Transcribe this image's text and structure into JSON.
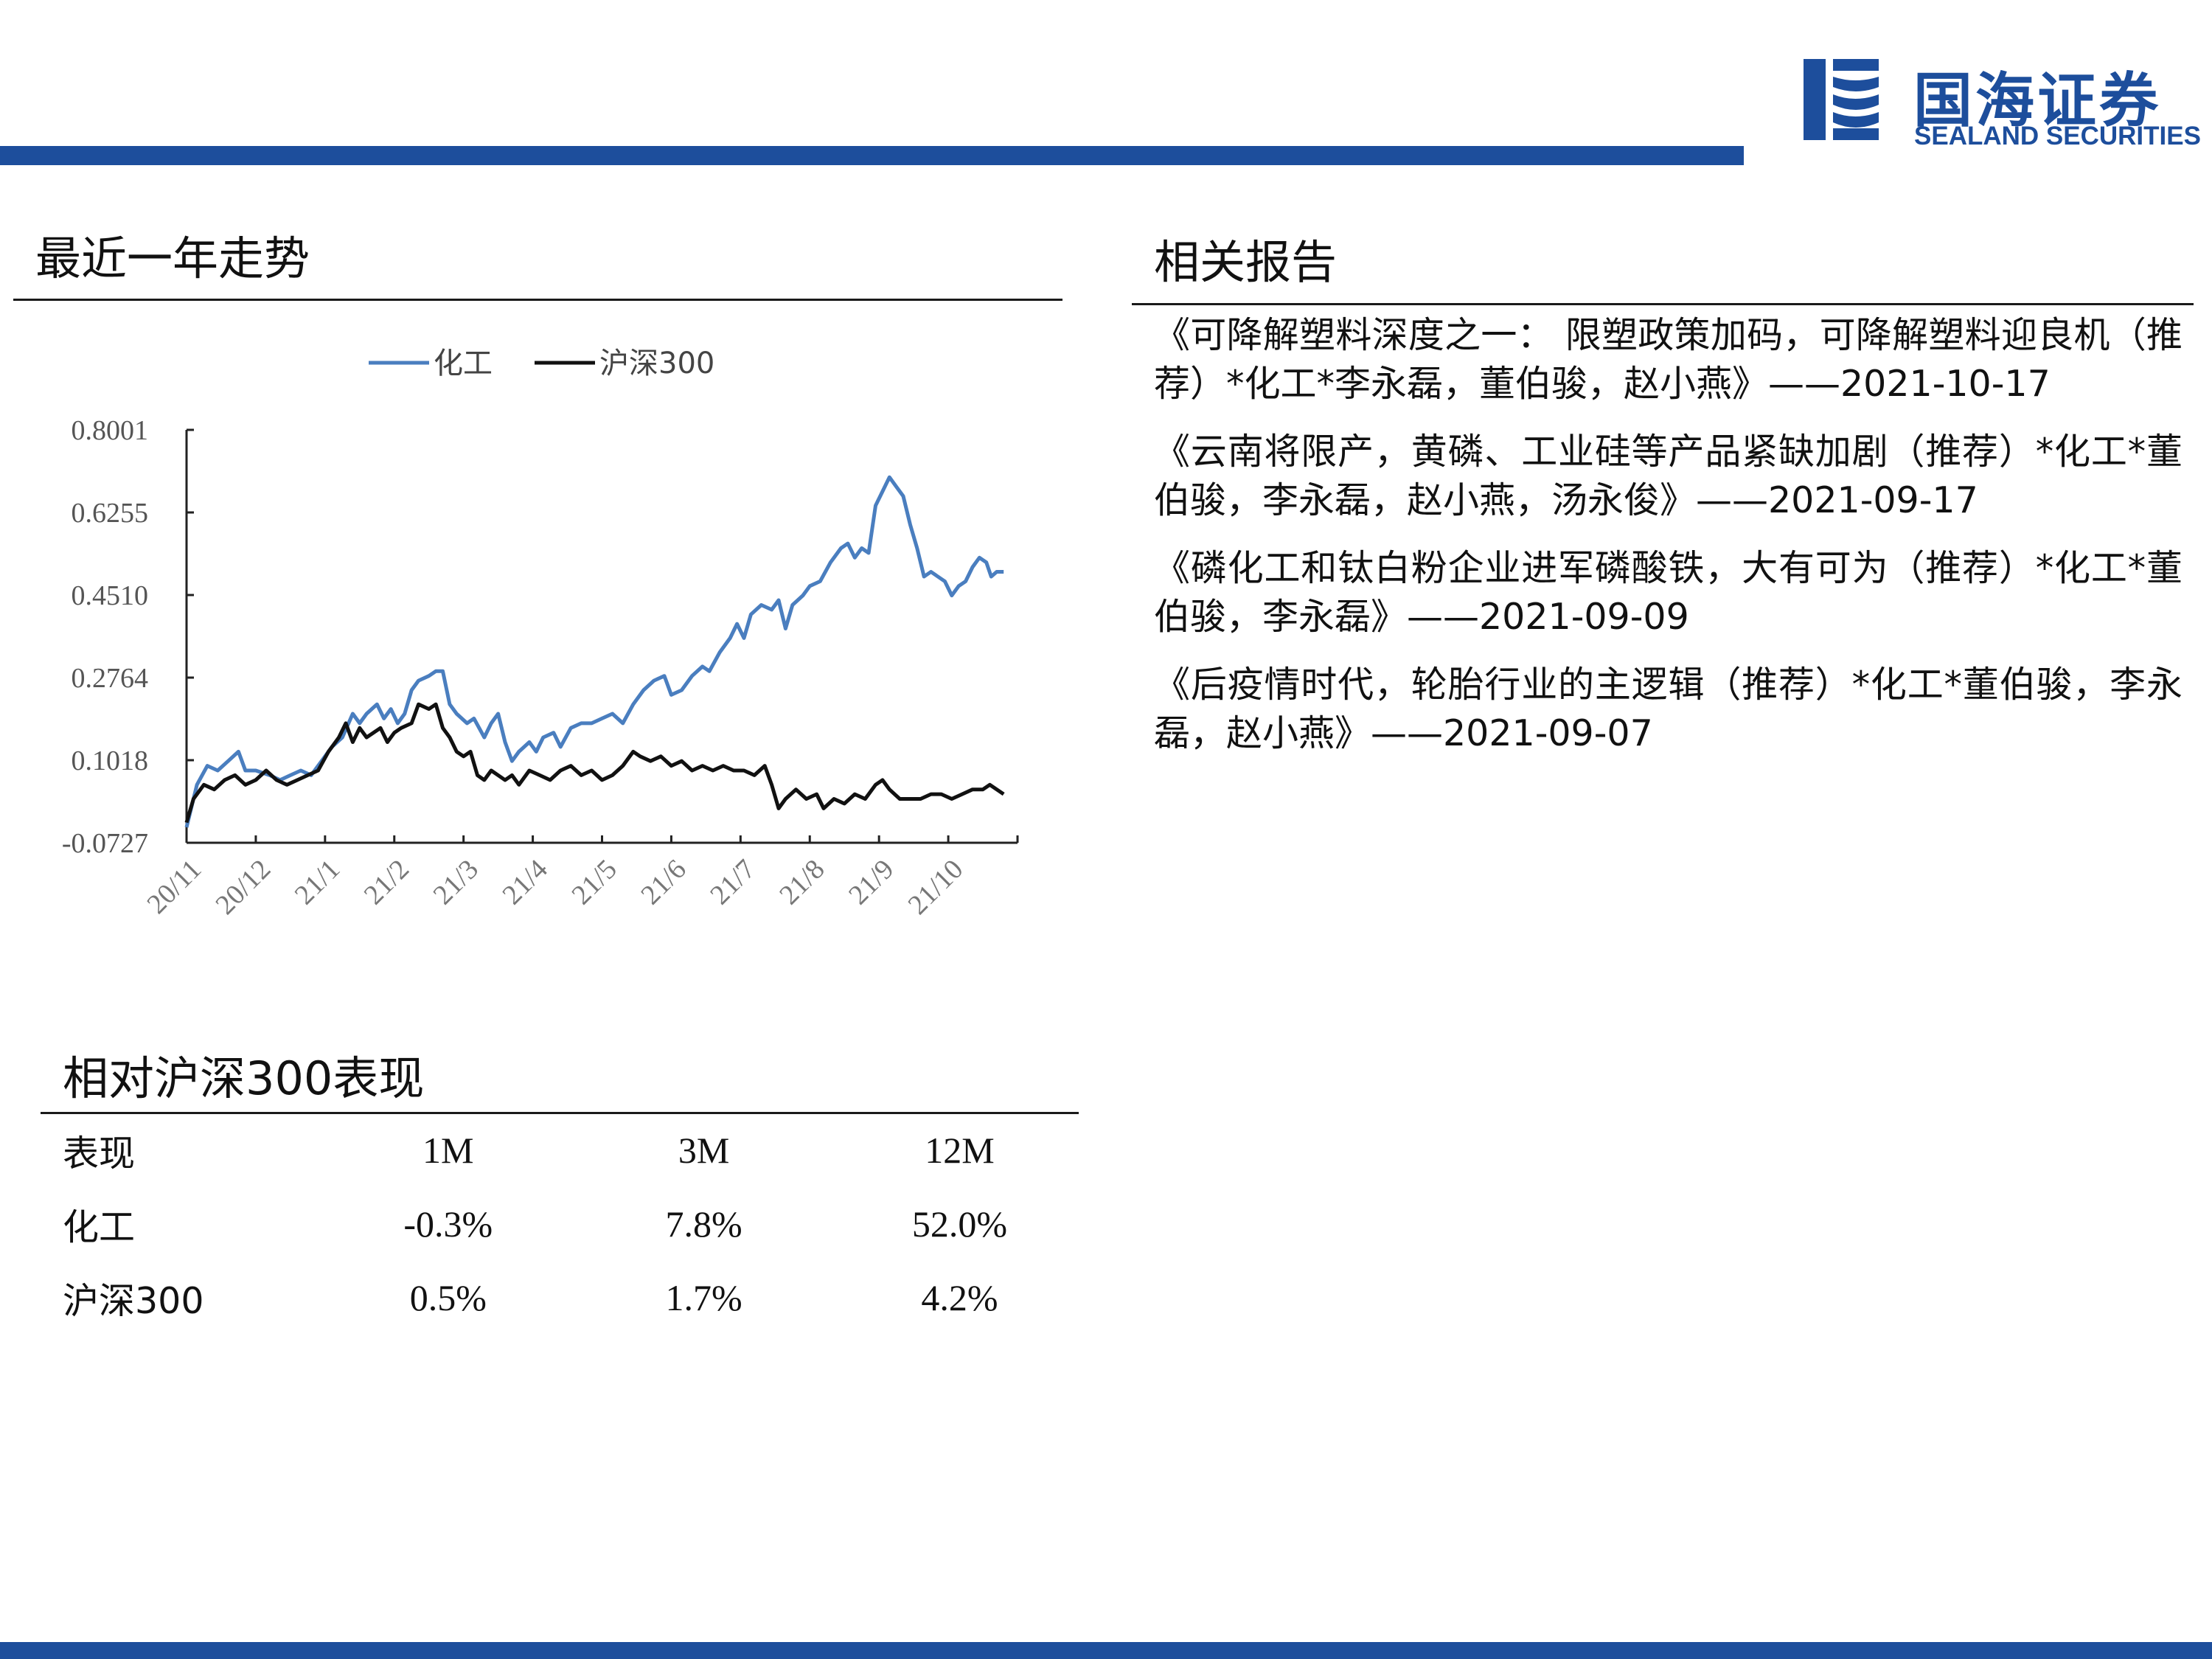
{
  "header": {
    "logo_cn": "国海证券",
    "logo_en": "SEALAND SECURITIES",
    "brand_color": "#1d4e9c"
  },
  "trend_section": {
    "title": "最近一年走势"
  },
  "reports_section": {
    "title": "相关报告",
    "items": [
      "《可降解塑料深度之一：  限塑政策加码，可降解塑料迎良机（推荐）*化工*李永磊，董伯骏，赵小燕》——2021-10-17",
      "《云南将限产，黄磷、工业硅等产品紧缺加剧（推荐）*化工*董伯骏，李永磊，赵小燕，汤永俊》——2021-09-17",
      "《磷化工和钛白粉企业进军磷酸铁，大有可为（推荐）*化工*董伯骏，李永磊》——2021-09-09",
      "《后疫情时代，轮胎行业的主逻辑（推荐）*化工*董伯骏，李永磊，赵小燕》——2021-09-07"
    ]
  },
  "performance_section": {
    "title": "相对沪深300表现",
    "headers": [
      "表现",
      "1M",
      "3M",
      "12M"
    ],
    "rows": [
      [
        "化工",
        "-0.3%",
        "7.8%",
        "52.0%"
      ],
      [
        "沪深300",
        "0.5%",
        "1.7%",
        "4.2%"
      ]
    ]
  },
  "chart_data": {
    "type": "line",
    "legend": [
      "化工",
      "沪深300"
    ],
    "legend_position": "top-center",
    "yticks": [
      "0.8001",
      "0.6255",
      "0.4510",
      "0.2764",
      "0.1018",
      "-0.0727"
    ],
    "ylim": [
      -0.0727,
      0.8001
    ],
    "xticks": [
      "20/11",
      "20/12",
      "21/1",
      "21/2",
      "21/3",
      "21/4",
      "21/5",
      "21/6",
      "21/7",
      "21/8",
      "21/9",
      "21/10"
    ],
    "xlim": [
      0,
      12
    ],
    "grid": false,
    "series": [
      {
        "name": "化工",
        "color": "#4a7ebf",
        "points": [
          [
            0,
            -0.04
          ],
          [
            0.15,
            0.05
          ],
          [
            0.3,
            0.09
          ],
          [
            0.45,
            0.08
          ],
          [
            0.6,
            0.1
          ],
          [
            0.75,
            0.12
          ],
          [
            0.85,
            0.08
          ],
          [
            1,
            0.08
          ],
          [
            1.2,
            0.07
          ],
          [
            1.35,
            0.06
          ],
          [
            1.5,
            0.07
          ],
          [
            1.65,
            0.08
          ],
          [
            1.8,
            0.07
          ],
          [
            1.95,
            0.1
          ],
          [
            2.1,
            0.13
          ],
          [
            2.25,
            0.15
          ],
          [
            2.4,
            0.2
          ],
          [
            2.5,
            0.18
          ],
          [
            2.6,
            0.2
          ],
          [
            2.75,
            0.22
          ],
          [
            2.85,
            0.19
          ],
          [
            2.95,
            0.21
          ],
          [
            3.05,
            0.18
          ],
          [
            3.15,
            0.2
          ],
          [
            3.25,
            0.25
          ],
          [
            3.35,
            0.27
          ],
          [
            3.5,
            0.28
          ],
          [
            3.6,
            0.29
          ],
          [
            3.7,
            0.29
          ],
          [
            3.8,
            0.22
          ],
          [
            3.9,
            0.2
          ],
          [
            4.05,
            0.18
          ],
          [
            4.15,
            0.19
          ],
          [
            4.3,
            0.15
          ],
          [
            4.4,
            0.18
          ],
          [
            4.5,
            0.2
          ],
          [
            4.6,
            0.14
          ],
          [
            4.7,
            0.1
          ],
          [
            4.8,
            0.12
          ],
          [
            4.95,
            0.14
          ],
          [
            5.05,
            0.12
          ],
          [
            5.15,
            0.15
          ],
          [
            5.3,
            0.16
          ],
          [
            5.4,
            0.13
          ],
          [
            5.55,
            0.17
          ],
          [
            5.7,
            0.18
          ],
          [
            5.85,
            0.18
          ],
          [
            6,
            0.19
          ],
          [
            6.15,
            0.2
          ],
          [
            6.3,
            0.18
          ],
          [
            6.45,
            0.22
          ],
          [
            6.6,
            0.25
          ],
          [
            6.75,
            0.27
          ],
          [
            6.9,
            0.28
          ],
          [
            7,
            0.24
          ],
          [
            7.15,
            0.25
          ],
          [
            7.3,
            0.28
          ],
          [
            7.45,
            0.3
          ],
          [
            7.55,
            0.29
          ],
          [
            7.7,
            0.33
          ],
          [
            7.85,
            0.36
          ],
          [
            7.95,
            0.39
          ],
          [
            8.05,
            0.36
          ],
          [
            8.15,
            0.41
          ],
          [
            8.3,
            0.43
          ],
          [
            8.45,
            0.42
          ],
          [
            8.55,
            0.44
          ],
          [
            8.65,
            0.38
          ],
          [
            8.75,
            0.43
          ],
          [
            8.9,
            0.45
          ],
          [
            9.0,
            0.47
          ],
          [
            9.15,
            0.48
          ],
          [
            9.3,
            0.52
          ],
          [
            9.45,
            0.55
          ],
          [
            9.55,
            0.56
          ],
          [
            9.65,
            0.53
          ],
          [
            9.75,
            0.55
          ],
          [
            9.85,
            0.54
          ],
          [
            9.95,
            0.64
          ],
          [
            10.05,
            0.67
          ],
          [
            10.15,
            0.7
          ],
          [
            10.25,
            0.68
          ],
          [
            10.35,
            0.66
          ],
          [
            10.45,
            0.6
          ],
          [
            10.55,
            0.55
          ],
          [
            10.65,
            0.49
          ],
          [
            10.75,
            0.5
          ],
          [
            10.85,
            0.49
          ],
          [
            10.95,
            0.48
          ],
          [
            11.05,
            0.45
          ],
          [
            11.15,
            0.47
          ],
          [
            11.25,
            0.48
          ],
          [
            11.35,
            0.51
          ],
          [
            11.45,
            0.53
          ],
          [
            11.55,
            0.52
          ],
          [
            11.62,
            0.49
          ],
          [
            11.7,
            0.5
          ],
          [
            11.8,
            0.5
          ]
        ]
      },
      {
        "name": "沪深300",
        "color": "#111111",
        "points": [
          [
            0,
            -0.03
          ],
          [
            0.1,
            0.02
          ],
          [
            0.25,
            0.05
          ],
          [
            0.4,
            0.04
          ],
          [
            0.55,
            0.06
          ],
          [
            0.7,
            0.07
          ],
          [
            0.85,
            0.05
          ],
          [
            1,
            0.06
          ],
          [
            1.15,
            0.08
          ],
          [
            1.3,
            0.06
          ],
          [
            1.45,
            0.05
          ],
          [
            1.6,
            0.06
          ],
          [
            1.75,
            0.07
          ],
          [
            1.9,
            0.08
          ],
          [
            2.05,
            0.12
          ],
          [
            2.2,
            0.15
          ],
          [
            2.3,
            0.18
          ],
          [
            2.4,
            0.14
          ],
          [
            2.5,
            0.17
          ],
          [
            2.6,
            0.15
          ],
          [
            2.7,
            0.16
          ],
          [
            2.8,
            0.17
          ],
          [
            2.9,
            0.14
          ],
          [
            3.0,
            0.16
          ],
          [
            3.1,
            0.17
          ],
          [
            3.25,
            0.18
          ],
          [
            3.35,
            0.22
          ],
          [
            3.5,
            0.21
          ],
          [
            3.6,
            0.22
          ],
          [
            3.7,
            0.17
          ],
          [
            3.8,
            0.15
          ],
          [
            3.9,
            0.12
          ],
          [
            4.0,
            0.11
          ],
          [
            4.1,
            0.12
          ],
          [
            4.2,
            0.07
          ],
          [
            4.3,
            0.06
          ],
          [
            4.4,
            0.08
          ],
          [
            4.5,
            0.07
          ],
          [
            4.6,
            0.06
          ],
          [
            4.7,
            0.07
          ],
          [
            4.8,
            0.05
          ],
          [
            4.95,
            0.08
          ],
          [
            5.1,
            0.07
          ],
          [
            5.25,
            0.06
          ],
          [
            5.4,
            0.08
          ],
          [
            5.55,
            0.09
          ],
          [
            5.7,
            0.07
          ],
          [
            5.85,
            0.08
          ],
          [
            6,
            0.06
          ],
          [
            6.15,
            0.07
          ],
          [
            6.3,
            0.09
          ],
          [
            6.45,
            0.12
          ],
          [
            6.55,
            0.11
          ],
          [
            6.7,
            0.1
          ],
          [
            6.85,
            0.11
          ],
          [
            7.0,
            0.09
          ],
          [
            7.15,
            0.1
          ],
          [
            7.3,
            0.08
          ],
          [
            7.45,
            0.09
          ],
          [
            7.6,
            0.08
          ],
          [
            7.75,
            0.09
          ],
          [
            7.9,
            0.08
          ],
          [
            8.05,
            0.08
          ],
          [
            8.2,
            0.07
          ],
          [
            8.35,
            0.09
          ],
          [
            8.45,
            0.05
          ],
          [
            8.55,
            0.0
          ],
          [
            8.65,
            0.02
          ],
          [
            8.8,
            0.04
          ],
          [
            8.95,
            0.02
          ],
          [
            9.1,
            0.03
          ],
          [
            9.2,
            0.0
          ],
          [
            9.35,
            0.02
          ],
          [
            9.5,
            0.01
          ],
          [
            9.65,
            0.03
          ],
          [
            9.8,
            0.02
          ],
          [
            9.95,
            0.05
          ],
          [
            10.05,
            0.06
          ],
          [
            10.15,
            0.04
          ],
          [
            10.3,
            0.02
          ],
          [
            10.45,
            0.02
          ],
          [
            10.6,
            0.02
          ],
          [
            10.75,
            0.03
          ],
          [
            10.9,
            0.03
          ],
          [
            11.05,
            0.02
          ],
          [
            11.2,
            0.03
          ],
          [
            11.35,
            0.04
          ],
          [
            11.5,
            0.04
          ],
          [
            11.6,
            0.05
          ],
          [
            11.7,
            0.04
          ],
          [
            11.8,
            0.03
          ]
        ]
      }
    ]
  }
}
